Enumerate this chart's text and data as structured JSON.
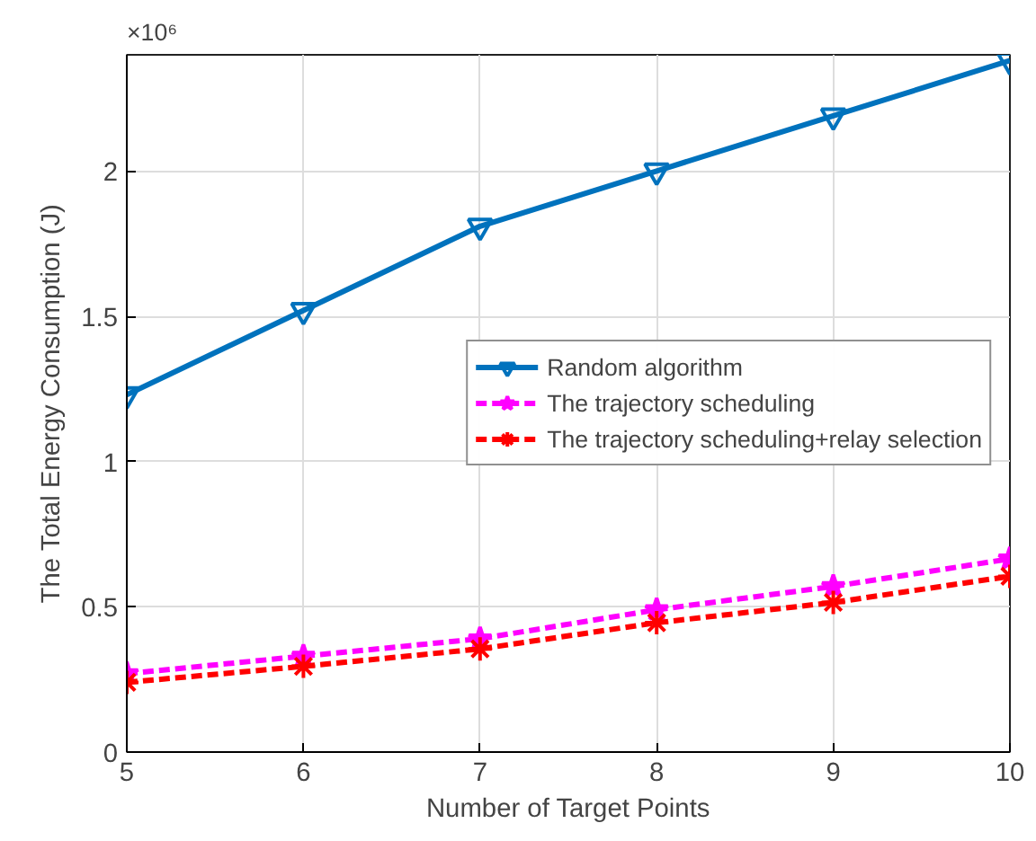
{
  "chart_data": {
    "type": "line",
    "xlabel": "Number of Target Points",
    "ylabel": "The Total Energy Consumption (J)",
    "x": [
      5,
      6,
      7,
      8,
      9,
      10
    ],
    "xlim": [
      5,
      10
    ],
    "xticks": [
      5,
      6,
      7,
      8,
      9,
      10
    ],
    "ylim": [
      0,
      2.4
    ],
    "yticks": [
      0,
      0.5,
      1,
      1.5,
      2
    ],
    "grid": true,
    "legend": "right",
    "annotations": [
      "×10⁶"
    ],
    "series": [
      {
        "name": "Random algorithm",
        "color": "#0072bd",
        "marker": "triangle",
        "line_style": "solid",
        "values": [
          1.23,
          1.52,
          1.81,
          2.0,
          2.19,
          2.38
        ]
      },
      {
        "name": "The trajectory scheduling",
        "color": "#ff00ff",
        "marker": "star",
        "line_style": "dashed",
        "values": [
          0.27,
          0.33,
          0.39,
          0.49,
          0.57,
          0.665
        ]
      },
      {
        "name": "The trajectory scheduling+relay selection",
        "color": "#ff0000",
        "marker": "cross",
        "line_style": "dashed",
        "values": [
          0.24,
          0.295,
          0.355,
          0.445,
          0.515,
          0.605
        ]
      }
    ]
  }
}
